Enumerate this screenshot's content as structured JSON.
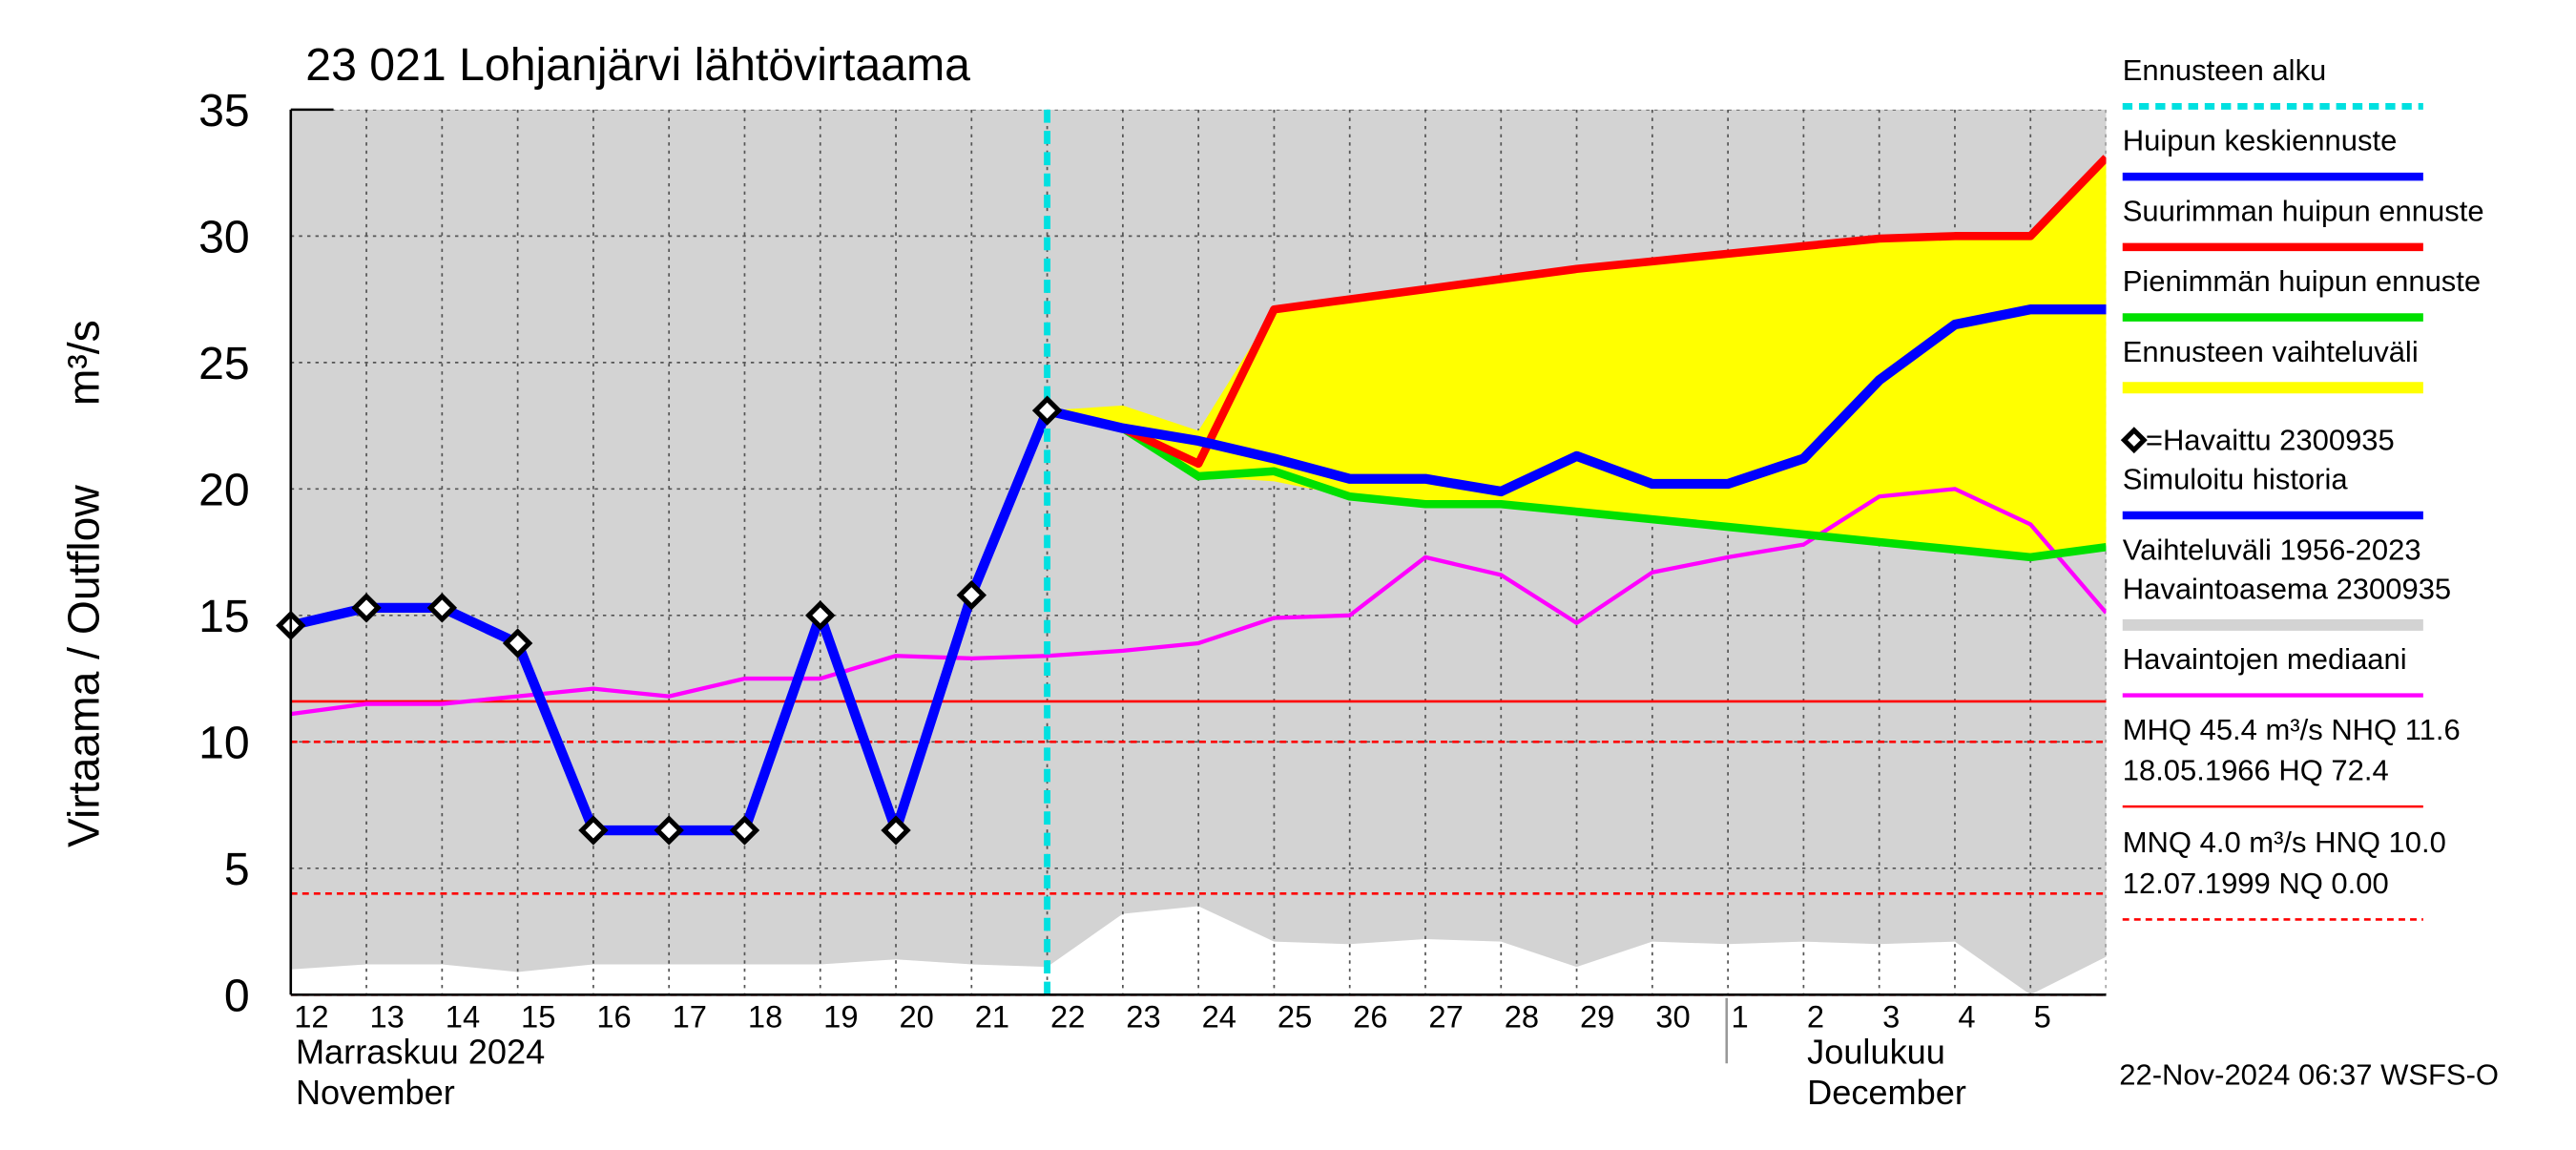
{
  "chart_data": {
    "type": "line",
    "title": "23 021 Lohjanjärvi lähtövirtaama",
    "y_label": [
      "Virtaama / Outflow",
      "m³/s"
    ],
    "categories": [
      "12",
      "13",
      "14",
      "15",
      "16",
      "17",
      "18",
      "19",
      "20",
      "21",
      "22",
      "23",
      "24",
      "25",
      "26",
      "27",
      "28",
      "29",
      "30",
      "1",
      "2",
      "3",
      "4",
      "5",
      null
    ],
    "months": [
      [
        "Marraskuu 2024",
        "November"
      ],
      [
        "Joulukuu",
        "December"
      ]
    ],
    "ylim": [
      0,
      35
    ],
    "yticks": [
      0,
      5,
      10,
      15,
      20,
      25,
      30,
      35
    ],
    "grid": true,
    "forecast_start": {
      "name": "Ennusteen alku",
      "at": "22",
      "color": "#00e0e0"
    },
    "series": [
      {
        "name": "Huipun keskiennuste",
        "kind": "line",
        "color": "#0000ff",
        "width": 6,
        "values": [
          null,
          null,
          null,
          null,
          null,
          null,
          null,
          null,
          null,
          null,
          23.1,
          22.4,
          21.9,
          21.2,
          20.4,
          20.4,
          19.9,
          21.3,
          20.2,
          20.2,
          21.2,
          24.3,
          26.5,
          27.1,
          27.1
        ]
      },
      {
        "name": "Suurimman huipun ennuste",
        "kind": "line",
        "color": "#ff0000",
        "width": 5,
        "values": [
          null,
          null,
          null,
          null,
          null,
          null,
          null,
          null,
          null,
          null,
          23.1,
          22.4,
          21.0,
          27.1,
          27.5,
          27.9,
          28.3,
          28.7,
          29.0,
          29.3,
          29.6,
          29.9,
          30.0,
          30.0,
          33.1
        ]
      },
      {
        "name": "Pienimmän huipun ennuste",
        "kind": "line",
        "color": "#00e000",
        "width": 5,
        "values": [
          null,
          null,
          null,
          null,
          null,
          null,
          null,
          null,
          null,
          null,
          23.1,
          22.4,
          20.5,
          20.7,
          19.7,
          19.4,
          19.4,
          19.1,
          18.8,
          18.5,
          18.2,
          17.9,
          17.6,
          17.3,
          17.7
        ]
      },
      {
        "name": "Ennusteen vaihteluväli",
        "kind": "band",
        "color": "#ffff00",
        "high": [
          null,
          null,
          null,
          null,
          null,
          null,
          null,
          null,
          null,
          null,
          23.1,
          23.3,
          22.3,
          27.1,
          27.5,
          27.9,
          28.3,
          28.7,
          29.0,
          29.3,
          29.6,
          29.9,
          30.0,
          30.0,
          33.1
        ],
        "low": [
          null,
          null,
          null,
          null,
          null,
          null,
          null,
          null,
          null,
          null,
          23.1,
          22.4,
          20.5,
          20.3,
          19.7,
          19.4,
          19.4,
          19.1,
          18.8,
          18.5,
          18.2,
          17.9,
          17.6,
          17.3,
          17.7
        ]
      },
      {
        "name": "=Havaittu 2300935",
        "kind": "markers",
        "color": "#000000",
        "values": [
          14.6,
          15.3,
          15.3,
          13.9,
          6.5,
          6.5,
          6.5,
          15.0,
          6.5,
          15.8,
          23.1,
          null,
          null,
          null,
          null,
          null,
          null,
          null,
          null,
          null,
          null,
          null,
          null,
          null,
          null
        ]
      },
      {
        "name": "Simuloitu historia",
        "kind": "line",
        "color": "#0000ff",
        "width": 6,
        "values": [
          14.6,
          15.3,
          15.3,
          13.9,
          6.5,
          6.5,
          6.5,
          15.0,
          6.5,
          15.8,
          23.1,
          null,
          null,
          null,
          null,
          null,
          null,
          null,
          null,
          null,
          null,
          null,
          null,
          null,
          null
        ]
      },
      {
        "name": "Vaihteluväli 1956-2023",
        "name_2": " Havaintoasema 2300935",
        "kind": "range",
        "color": "#d3d3d3",
        "low": [
          1.0,
          1.2,
          1.2,
          0.9,
          1.2,
          1.2,
          1.2,
          1.2,
          1.4,
          1.2,
          1.1,
          3.2,
          3.5,
          2.1,
          2.0,
          2.2,
          2.1,
          1.1,
          2.1,
          2.0,
          2.1,
          2.0,
          2.1,
          0.0,
          1.5
        ]
      },
      {
        "name": "Havaintojen mediaani",
        "kind": "line",
        "color": "#ff00ff",
        "width": 2.5,
        "values": [
          11.1,
          11.5,
          11.5,
          11.8,
          12.1,
          11.8,
          12.5,
          12.5,
          13.4,
          13.3,
          13.4,
          13.6,
          13.9,
          14.9,
          15.0,
          17.3,
          16.6,
          14.7,
          16.7,
          17.3,
          17.8,
          19.7,
          20.0,
          18.6,
          15.1
        ]
      }
    ],
    "reference_lines": [
      {
        "value": 11.6,
        "dashed": false,
        "color": "#ff0000"
      },
      {
        "value": 10.0,
        "dashed": true,
        "color": "#ff0000"
      },
      {
        "value": 4.0,
        "dashed": true,
        "color": "#ff0000"
      },
      {
        "value": 0,
        "dashed": true,
        "color": "#ff0000"
      }
    ],
    "stats": [
      {
        "lines": [
          "MHQ 45.4 m³/s NHQ 11.6",
          "18.05.1966 HQ 72.4"
        ],
        "dashed": false,
        "color": "#ff0000"
      },
      {
        "lines": [
          "MNQ  4.0 m³/s HNQ 10.0",
          "12.07.1999 NQ 0.00"
        ],
        "dashed": true,
        "color": "#ff0000"
      }
    ],
    "timestamp": "22-Nov-2024 06:37 WSFS-O"
  }
}
